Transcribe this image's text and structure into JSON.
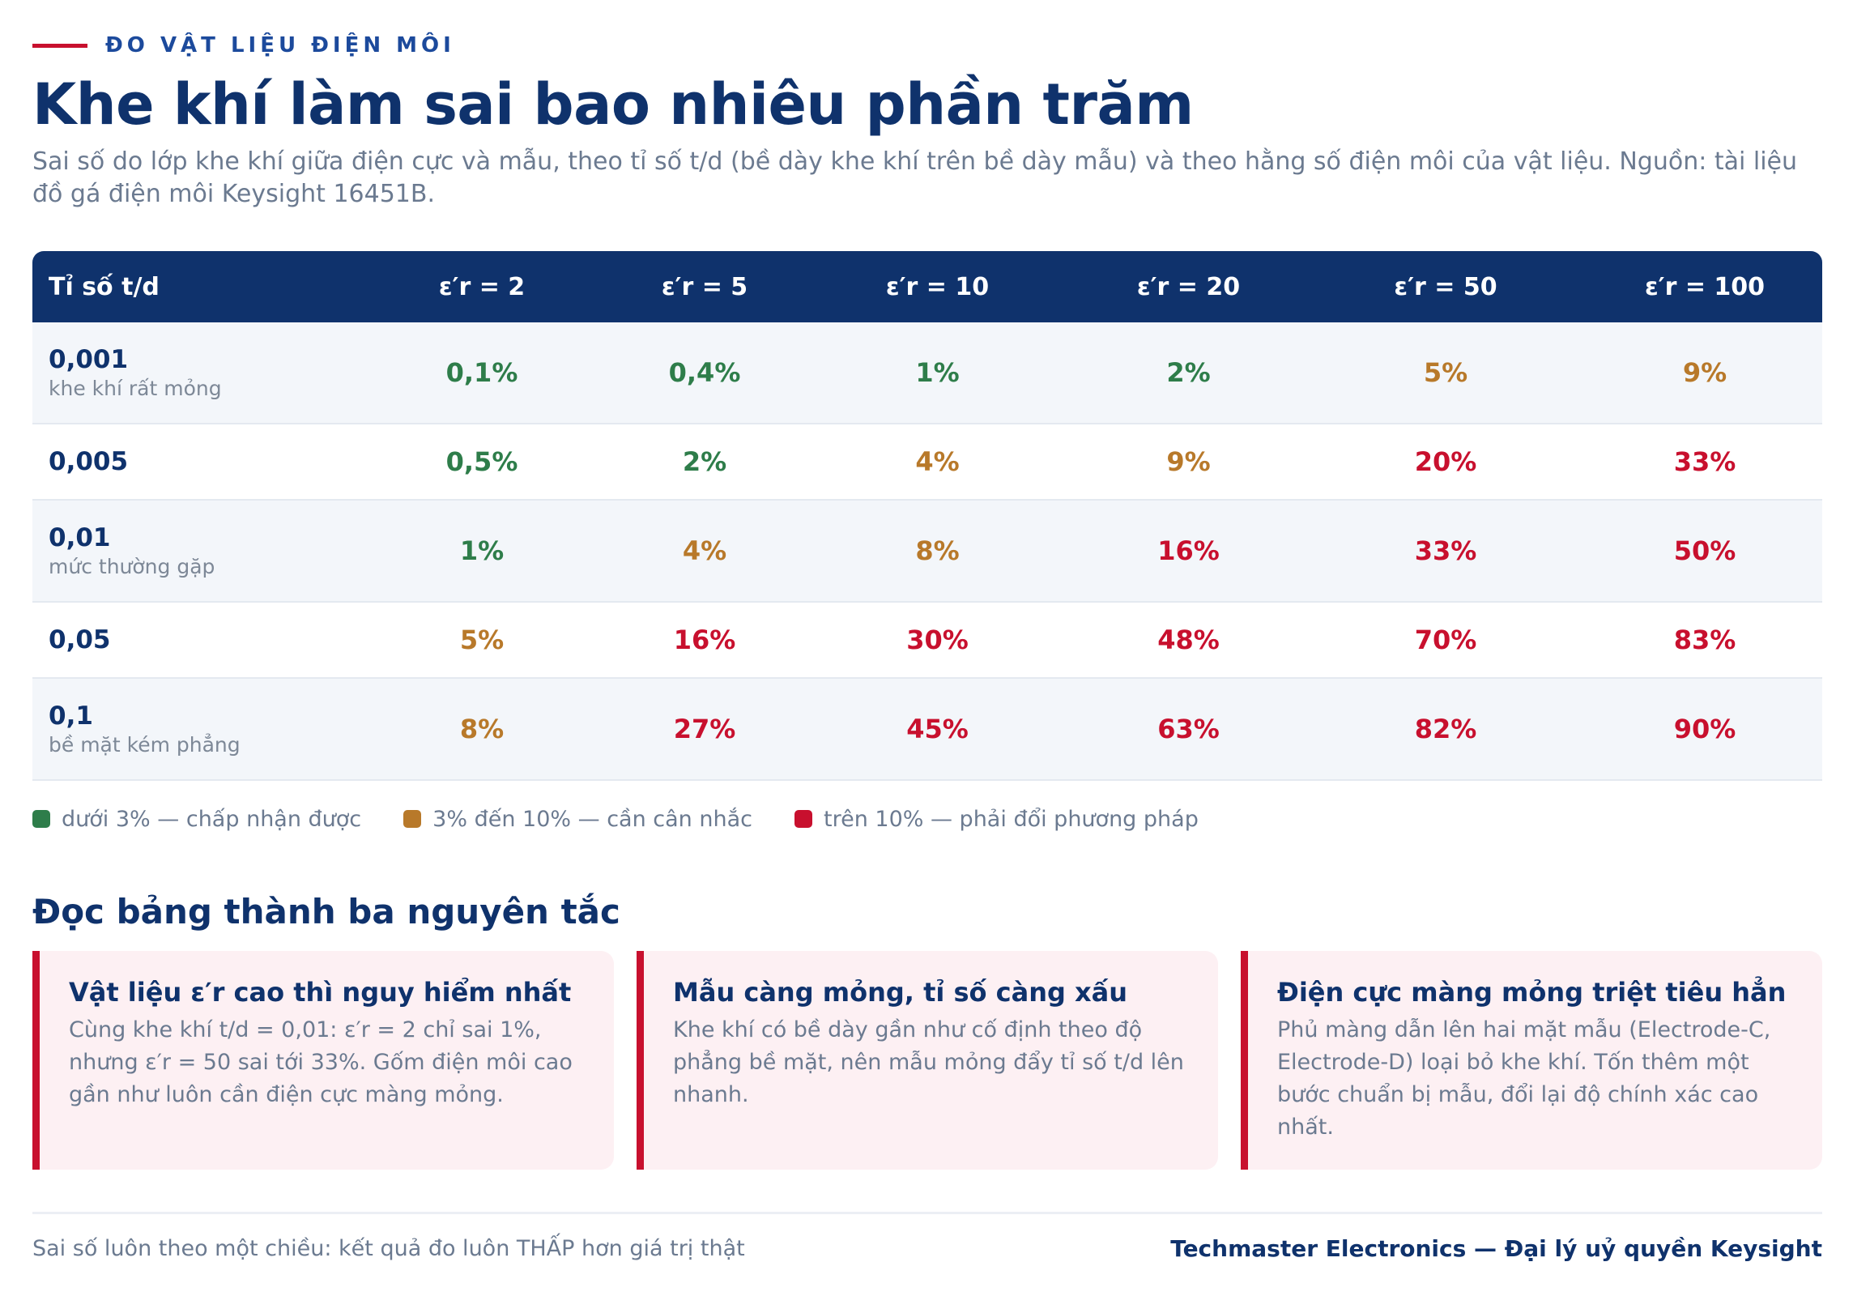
{
  "eyebrow": "ĐO VẬT LIỆU ĐIỆN MÔI",
  "title": "Khe khí làm sai bao nhiêu phần trăm",
  "subtitle": "Sai số do lớp khe khí giữa điện cực và mẫu, theo tỉ số t/d (bề dày khe khí trên bề dày mẫu) và theo hằng số điện môi của vật liệu. Nguồn: tài liệu đồ gá điện môi Keysight 16451B.",
  "table": {
    "headers": [
      "Tỉ số t/d",
      "ε′r = 2",
      "ε′r = 5",
      "ε′r = 10",
      "ε′r = 20",
      "ε′r = 50",
      "ε′r = 100"
    ],
    "rows": [
      {
        "ratio": "0,001",
        "note": "khe khí rất mỏng",
        "cells": [
          "0,1%",
          "0,4%",
          "1%",
          "2%",
          "5%",
          "9%"
        ],
        "levels": [
          "good",
          "good",
          "good",
          "good",
          "warn",
          "warn"
        ]
      },
      {
        "ratio": "0,005",
        "note": "",
        "cells": [
          "0,5%",
          "2%",
          "4%",
          "9%",
          "20%",
          "33%"
        ],
        "levels": [
          "good",
          "good",
          "warn",
          "warn",
          "bad",
          "bad"
        ]
      },
      {
        "ratio": "0,01",
        "note": "mức thường gặp",
        "cells": [
          "1%",
          "4%",
          "8%",
          "16%",
          "33%",
          "50%"
        ],
        "levels": [
          "good",
          "warn",
          "warn",
          "bad",
          "bad",
          "bad"
        ]
      },
      {
        "ratio": "0,05",
        "note": "",
        "cells": [
          "5%",
          "16%",
          "30%",
          "48%",
          "70%",
          "83%"
        ],
        "levels": [
          "warn",
          "bad",
          "bad",
          "bad",
          "bad",
          "bad"
        ]
      },
      {
        "ratio": "0,1",
        "note": "bề mặt kém phẳng",
        "cells": [
          "8%",
          "27%",
          "45%",
          "63%",
          "82%",
          "90%"
        ],
        "levels": [
          "warn",
          "bad",
          "bad",
          "bad",
          "bad",
          "bad"
        ]
      }
    ]
  },
  "legend": [
    {
      "label": "dưới 3% — chấp nhận được",
      "color": "#2e7d4a"
    },
    {
      "label": "3% đến 10% — cần cân nhắc",
      "color": "#b8792a"
    },
    {
      "label": "trên 10% — phải đổi phương pháp",
      "color": "#c8102e"
    }
  ],
  "principles": {
    "title": "Đọc bảng thành ba nguyên tắc",
    "cards": [
      {
        "title": "Vật liệu ε′r cao thì nguy hiểm nhất",
        "body": "Cùng khe khí t/d = 0,01: ε′r = 2 chỉ sai 1%, nhưng ε′r = 50 sai tới 33%. Gốm điện môi cao gần như luôn cần điện cực màng mỏng."
      },
      {
        "title": "Mẫu càng mỏng, tỉ số càng xấu",
        "body": "Khe khí có bề dày gần như cố định theo độ phẳng bề mặt, nên mẫu mỏng đẩy tỉ số t/d lên nhanh."
      },
      {
        "title": "Điện cực màng mỏng triệt tiêu hẳn",
        "body": "Phủ màng dẫn lên hai mặt mẫu (Electrode-C, Electrode-D) loại bỏ khe khí. Tốn thêm một bước chuẩn bị mẫu, đổi lại độ chính xác cao nhất."
      }
    ]
  },
  "footer": {
    "note": "Sai số luôn theo một chiều: kết quả đo luôn THẤP hơn giá trị thật",
    "brand": "Techmaster Electronics — Đại lý uỷ quyền Keysight"
  }
}
